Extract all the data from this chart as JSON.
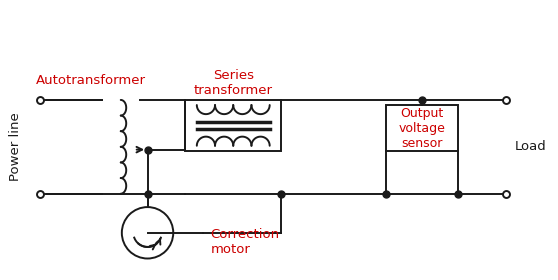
{
  "bg_color": "#ffffff",
  "line_color": "#1a1a1a",
  "red_color": "#cc0000",
  "label_fontsize": 9.5,
  "labels": {
    "autotransformer": "Autotransformer",
    "series_transformer": "Series\ntransformer",
    "power_line": "Power line",
    "correction_motor": "Correction\nmotor",
    "output_voltage_sensor": "Output\nvoltage\nsensor",
    "load": "Load"
  },
  "figsize": [
    5.58,
    2.8
  ],
  "dpi": 100
}
